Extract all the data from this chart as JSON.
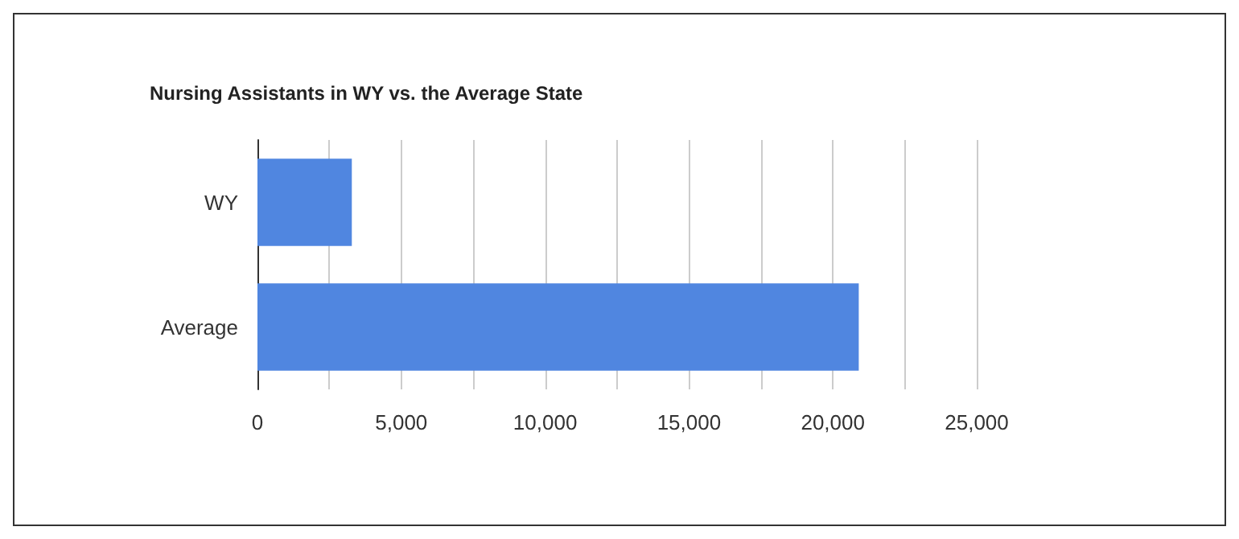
{
  "chart_data": {
    "type": "bar",
    "orientation": "horizontal",
    "title": "Nursing Assistants in WY vs. the Average State",
    "categories": [
      "WY",
      "Average"
    ],
    "values": [
      3280,
      20900
    ],
    "color": "#5086e0",
    "xlim": [
      0,
      25000
    ],
    "xticks": [
      0,
      {
        "value": 2500,
        "label": null
      },
      {
        "value": 5000,
        "label": "5,000"
      },
      {
        "value": 7500,
        "label": null
      },
      {
        "value": 10000,
        "label": "10,000"
      },
      {
        "value": 12500,
        "label": null
      },
      {
        "value": 15000,
        "label": "15,000"
      },
      {
        "value": 17500,
        "label": null
      },
      {
        "value": 20000,
        "label": "20,000"
      },
      {
        "value": 22500,
        "label": null
      },
      {
        "value": 25000,
        "label": "25,000"
      }
    ],
    "grid": "x"
  }
}
